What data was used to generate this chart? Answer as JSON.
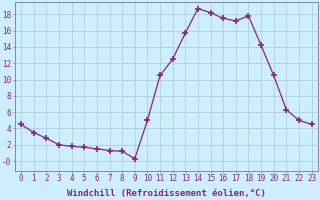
{
  "x": [
    0,
    1,
    2,
    3,
    4,
    5,
    6,
    7,
    8,
    9,
    10,
    11,
    12,
    13,
    14,
    15,
    16,
    17,
    18,
    19,
    20,
    21,
    22,
    23
  ],
  "y": [
    4.5,
    3.5,
    2.8,
    2.0,
    1.8,
    1.7,
    1.5,
    1.3,
    1.2,
    0.3,
    5.0,
    10.5,
    12.5,
    15.7,
    18.7,
    18.2,
    17.5,
    17.2,
    17.8,
    14.2,
    10.5,
    6.3,
    5.0,
    4.5
  ],
  "line_color": "#882288",
  "marker": "+",
  "marker_size": 4,
  "marker_lw": 1.2,
  "bg_color": "#cceeff",
  "grid_color": "#aacccc",
  "xlabel": "Windchill (Refroidissement éolien,°C)",
  "xlim": [
    -0.5,
    23.5
  ],
  "ylim": [
    -1.2,
    19.5
  ],
  "yticks": [
    0,
    2,
    4,
    6,
    8,
    10,
    12,
    14,
    16,
    18
  ],
  "ytick_labels": [
    "-0",
    "2",
    "4",
    "6",
    "8",
    "10",
    "12",
    "14",
    "16",
    "18"
  ],
  "xticks": [
    0,
    1,
    2,
    3,
    4,
    5,
    6,
    7,
    8,
    9,
    10,
    11,
    12,
    13,
    14,
    15,
    16,
    17,
    18,
    19,
    20,
    21,
    22,
    23
  ],
  "spine_color": "#7777aa",
  "tick_color": "#882288",
  "label_color": "#882288",
  "font_size": 5.5,
  "xlabel_fontsize": 6.5,
  "linewidth": 0.9
}
